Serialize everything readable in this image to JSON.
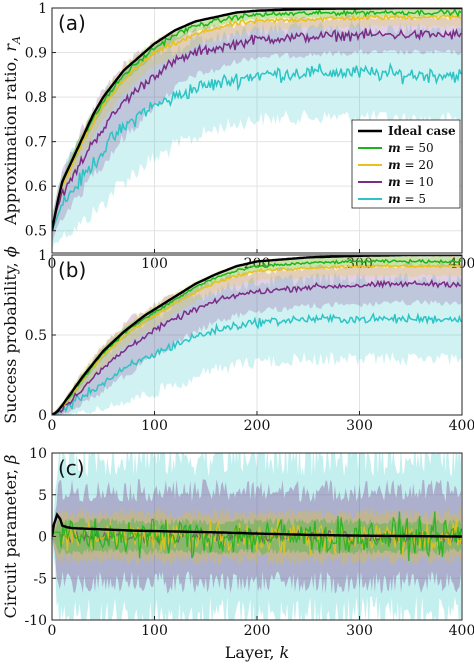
{
  "chart_data": [
    {
      "type": "line",
      "panel": "(a)",
      "ylabel": "Approximation ratio, r_A",
      "ylabel_main": "Approximation ratio, ",
      "ylabel_var": "r",
      "ylabel_sub": "A",
      "xlim": [
        0,
        400
      ],
      "ylim": [
        0.45,
        1.0
      ],
      "yticks": [
        0.5,
        0.6,
        0.7,
        0.8,
        0.9,
        1
      ],
      "ytick_labels": [
        "0.5",
        "0.6",
        "0.7",
        "0.8",
        "0.9",
        "1"
      ],
      "xticks": [
        0,
        100,
        200,
        300,
        400
      ],
      "xtick_labels": [
        "0",
        "100",
        "200",
        "300",
        "400"
      ],
      "legend_position": "center-right",
      "series": [
        {
          "name": "Ideal case",
          "color": "#000000",
          "x": [
            0,
            5,
            10,
            20,
            30,
            40,
            50,
            60,
            70,
            80,
            90,
            100,
            120,
            140,
            160,
            180,
            200,
            250,
            300,
            350,
            400
          ],
          "y": [
            0.5,
            0.56,
            0.61,
            0.66,
            0.71,
            0.76,
            0.8,
            0.83,
            0.86,
            0.88,
            0.9,
            0.92,
            0.95,
            0.97,
            0.98,
            0.99,
            0.994,
            0.998,
            0.999,
            1.0,
            1.0
          ],
          "band": [
            0.005,
            0.005,
            0.005,
            0.005,
            0.005,
            0.005,
            0.005,
            0.005,
            0.005,
            0.005,
            0.005,
            0.005,
            0.005,
            0.005,
            0.005,
            0.005,
            0.005,
            0.005,
            0.005,
            0.005,
            0.005
          ]
        },
        {
          "name": "m = 50",
          "color": "#1db31d",
          "x": [
            0,
            5,
            10,
            20,
            30,
            40,
            50,
            60,
            70,
            80,
            90,
            100,
            120,
            140,
            160,
            180,
            200,
            250,
            300,
            350,
            400
          ],
          "y": [
            0.5,
            0.56,
            0.61,
            0.66,
            0.71,
            0.75,
            0.79,
            0.82,
            0.85,
            0.87,
            0.89,
            0.91,
            0.94,
            0.96,
            0.97,
            0.98,
            0.985,
            0.988,
            0.99,
            0.99,
            0.99
          ],
          "band": [
            0.01,
            0.01,
            0.01,
            0.015,
            0.015,
            0.015,
            0.015,
            0.015,
            0.015,
            0.015,
            0.015,
            0.015,
            0.012,
            0.012,
            0.01,
            0.01,
            0.01,
            0.01,
            0.01,
            0.01,
            0.01
          ]
        },
        {
          "name": "m = 20",
          "color": "#e8c21a",
          "x": [
            0,
            5,
            10,
            20,
            30,
            40,
            50,
            60,
            70,
            80,
            90,
            100,
            120,
            140,
            160,
            180,
            200,
            250,
            300,
            350,
            400
          ],
          "y": [
            0.5,
            0.56,
            0.6,
            0.65,
            0.7,
            0.74,
            0.78,
            0.81,
            0.84,
            0.86,
            0.88,
            0.9,
            0.92,
            0.94,
            0.955,
            0.965,
            0.97,
            0.975,
            0.978,
            0.98,
            0.98
          ],
          "band": [
            0.02,
            0.02,
            0.02,
            0.025,
            0.025,
            0.03,
            0.03,
            0.03,
            0.03,
            0.03,
            0.03,
            0.03,
            0.03,
            0.025,
            0.025,
            0.025,
            0.02,
            0.02,
            0.02,
            0.02,
            0.02
          ]
        },
        {
          "name": "m = 10",
          "color": "#7a2c87",
          "x": [
            0,
            5,
            10,
            20,
            30,
            40,
            50,
            60,
            70,
            80,
            90,
            100,
            120,
            140,
            160,
            180,
            200,
            250,
            300,
            350,
            400
          ],
          "y": [
            0.5,
            0.55,
            0.58,
            0.62,
            0.66,
            0.7,
            0.73,
            0.76,
            0.79,
            0.81,
            0.83,
            0.85,
            0.88,
            0.9,
            0.91,
            0.92,
            0.93,
            0.935,
            0.94,
            0.94,
            0.94
          ],
          "band": [
            0.03,
            0.04,
            0.05,
            0.06,
            0.07,
            0.07,
            0.08,
            0.08,
            0.08,
            0.08,
            0.07,
            0.07,
            0.06,
            0.05,
            0.05,
            0.04,
            0.04,
            0.04,
            0.04,
            0.04,
            0.04
          ]
        },
        {
          "name": "m = 5",
          "color": "#2cc4c4",
          "x": [
            0,
            5,
            10,
            20,
            30,
            40,
            50,
            60,
            70,
            80,
            90,
            100,
            120,
            140,
            160,
            180,
            200,
            250,
            300,
            350,
            400
          ],
          "y": [
            0.5,
            0.53,
            0.56,
            0.59,
            0.62,
            0.65,
            0.68,
            0.71,
            0.73,
            0.75,
            0.77,
            0.78,
            0.8,
            0.82,
            0.83,
            0.84,
            0.85,
            0.855,
            0.855,
            0.85,
            0.85
          ],
          "band": [
            0.04,
            0.05,
            0.07,
            0.09,
            0.1,
            0.11,
            0.12,
            0.12,
            0.12,
            0.12,
            0.12,
            0.12,
            0.11,
            0.11,
            0.1,
            0.1,
            0.1,
            0.1,
            0.1,
            0.1,
            0.1
          ]
        }
      ]
    },
    {
      "type": "line",
      "panel": "(b)",
      "ylabel": "Success probability, ϕ",
      "ylabel_main": "Success probability, ",
      "ylabel_var": "ϕ",
      "ylabel_sub": "",
      "xlim": [
        0,
        400
      ],
      "ylim": [
        0,
        1
      ],
      "yticks": [
        0,
        0.5,
        1
      ],
      "ytick_labels": [
        "0",
        "0.5",
        "1"
      ],
      "xticks": [
        0,
        100,
        200,
        300,
        400
      ],
      "xtick_labels": [
        "0",
        "100",
        "200",
        "300",
        "400"
      ],
      "series": [
        {
          "name": "Ideal case",
          "color": "#000000",
          "x": [
            0,
            5,
            10,
            20,
            30,
            40,
            50,
            60,
            70,
            80,
            90,
            100,
            120,
            140,
            160,
            180,
            200,
            250,
            300,
            350,
            400
          ],
          "y": [
            0,
            0.02,
            0.06,
            0.15,
            0.24,
            0.32,
            0.4,
            0.46,
            0.52,
            0.57,
            0.62,
            0.66,
            0.74,
            0.82,
            0.88,
            0.93,
            0.96,
            0.985,
            0.995,
            1.0,
            1.0
          ],
          "band": [
            0.005,
            0.005,
            0.005,
            0.005,
            0.005,
            0.005,
            0.005,
            0.005,
            0.005,
            0.005,
            0.005,
            0.005,
            0.005,
            0.005,
            0.005,
            0.005,
            0.005,
            0.005,
            0.005,
            0.005,
            0.005
          ]
        },
        {
          "name": "m = 50",
          "color": "#1db31d",
          "x": [
            0,
            5,
            10,
            20,
            30,
            40,
            50,
            60,
            70,
            80,
            90,
            100,
            120,
            140,
            160,
            180,
            200,
            250,
            300,
            350,
            400
          ],
          "y": [
            0,
            0.02,
            0.06,
            0.14,
            0.23,
            0.31,
            0.39,
            0.45,
            0.51,
            0.56,
            0.6,
            0.64,
            0.72,
            0.8,
            0.86,
            0.9,
            0.93,
            0.95,
            0.96,
            0.96,
            0.96
          ],
          "band": [
            0.01,
            0.01,
            0.02,
            0.03,
            0.03,
            0.03,
            0.03,
            0.03,
            0.03,
            0.03,
            0.03,
            0.03,
            0.03,
            0.03,
            0.03,
            0.03,
            0.03,
            0.03,
            0.03,
            0.03,
            0.03
          ]
        },
        {
          "name": "m = 20",
          "color": "#e8c21a",
          "x": [
            0,
            5,
            10,
            20,
            30,
            40,
            50,
            60,
            70,
            80,
            90,
            100,
            120,
            140,
            160,
            180,
            200,
            250,
            300,
            350,
            400
          ],
          "y": [
            0,
            0.02,
            0.05,
            0.13,
            0.22,
            0.3,
            0.37,
            0.43,
            0.49,
            0.54,
            0.58,
            0.62,
            0.7,
            0.77,
            0.83,
            0.87,
            0.9,
            0.92,
            0.93,
            0.93,
            0.93
          ],
          "band": [
            0.01,
            0.02,
            0.03,
            0.05,
            0.06,
            0.06,
            0.07,
            0.07,
            0.07,
            0.07,
            0.07,
            0.07,
            0.07,
            0.06,
            0.06,
            0.06,
            0.06,
            0.06,
            0.06,
            0.06,
            0.06
          ]
        },
        {
          "name": "m = 10",
          "color": "#7a2c87",
          "x": [
            0,
            5,
            10,
            20,
            30,
            40,
            50,
            60,
            70,
            80,
            90,
            100,
            120,
            140,
            160,
            180,
            200,
            250,
            300,
            350,
            400
          ],
          "y": [
            0,
            0.015,
            0.04,
            0.1,
            0.17,
            0.23,
            0.29,
            0.35,
            0.4,
            0.45,
            0.49,
            0.53,
            0.6,
            0.66,
            0.71,
            0.75,
            0.77,
            0.8,
            0.81,
            0.82,
            0.82
          ],
          "band": [
            0.01,
            0.02,
            0.04,
            0.07,
            0.1,
            0.12,
            0.14,
            0.15,
            0.16,
            0.16,
            0.16,
            0.16,
            0.15,
            0.14,
            0.13,
            0.13,
            0.12,
            0.12,
            0.12,
            0.12,
            0.12
          ]
        },
        {
          "name": "m = 5",
          "color": "#2cc4c4",
          "x": [
            0,
            5,
            10,
            20,
            30,
            40,
            50,
            60,
            70,
            80,
            90,
            100,
            120,
            140,
            160,
            180,
            200,
            250,
            300,
            350,
            400
          ],
          "y": [
            0,
            0.01,
            0.03,
            0.07,
            0.12,
            0.16,
            0.2,
            0.24,
            0.28,
            0.32,
            0.35,
            0.38,
            0.44,
            0.49,
            0.53,
            0.56,
            0.58,
            0.6,
            0.6,
            0.6,
            0.6
          ],
          "band": [
            0.01,
            0.02,
            0.04,
            0.07,
            0.1,
            0.13,
            0.16,
            0.18,
            0.2,
            0.22,
            0.23,
            0.24,
            0.25,
            0.25,
            0.25,
            0.25,
            0.25,
            0.25,
            0.25,
            0.25,
            0.25
          ]
        }
      ]
    },
    {
      "type": "line",
      "panel": "(c)",
      "ylabel": "Circuit parameter, β",
      "ylabel_main": "Circuit parameter, ",
      "ylabel_var": "β",
      "ylabel_sub": "",
      "xlabel": "Layer, k",
      "xlabel_main": "Layer, ",
      "xlabel_var": "k",
      "xlim": [
        0,
        400
      ],
      "ylim": [
        -10,
        10
      ],
      "yticks": [
        -10,
        -5,
        0,
        5,
        10
      ],
      "ytick_labels": [
        "-10",
        "-5",
        "0",
        "5",
        "10"
      ],
      "xticks": [
        0,
        100,
        200,
        300,
        400
      ],
      "xtick_labels": [
        "0",
        "100",
        "200",
        "300",
        "400"
      ],
      "series": [
        {
          "name": "m = 5",
          "color": "#2cc4c4",
          "x": [
            0,
            400
          ],
          "y": [
            0,
            0
          ],
          "band_abs": 9.5,
          "noise": 0.6
        },
        {
          "name": "m = 10",
          "color": "#7a2c87",
          "x": [
            0,
            400
          ],
          "y": [
            0,
            0
          ],
          "band_abs": 5.5,
          "noise": 0.5
        },
        {
          "name": "m = 20",
          "color": "#e8c21a",
          "x": [
            0,
            400
          ],
          "y": [
            0,
            0
          ],
          "band_abs": 2.8,
          "noise": 1.4
        },
        {
          "name": "m = 50",
          "color": "#1db31d",
          "x": [
            0,
            400
          ],
          "y": [
            0,
            0
          ],
          "band_abs": 1.8,
          "noise": 1.6
        },
        {
          "name": "Ideal case",
          "color": "#000000",
          "x": [
            0,
            2,
            5,
            8,
            10,
            15,
            20,
            40,
            80,
            120,
            160,
            200,
            250,
            300,
            350,
            400
          ],
          "y": [
            0,
            1.5,
            2.6,
            2.1,
            1.3,
            1.1,
            1.0,
            0.9,
            0.7,
            0.6,
            0.5,
            0.35,
            0.2,
            0.1,
            0.05,
            0.0
          ],
          "band_abs": 0,
          "noise": 0
        }
      ]
    }
  ]
}
